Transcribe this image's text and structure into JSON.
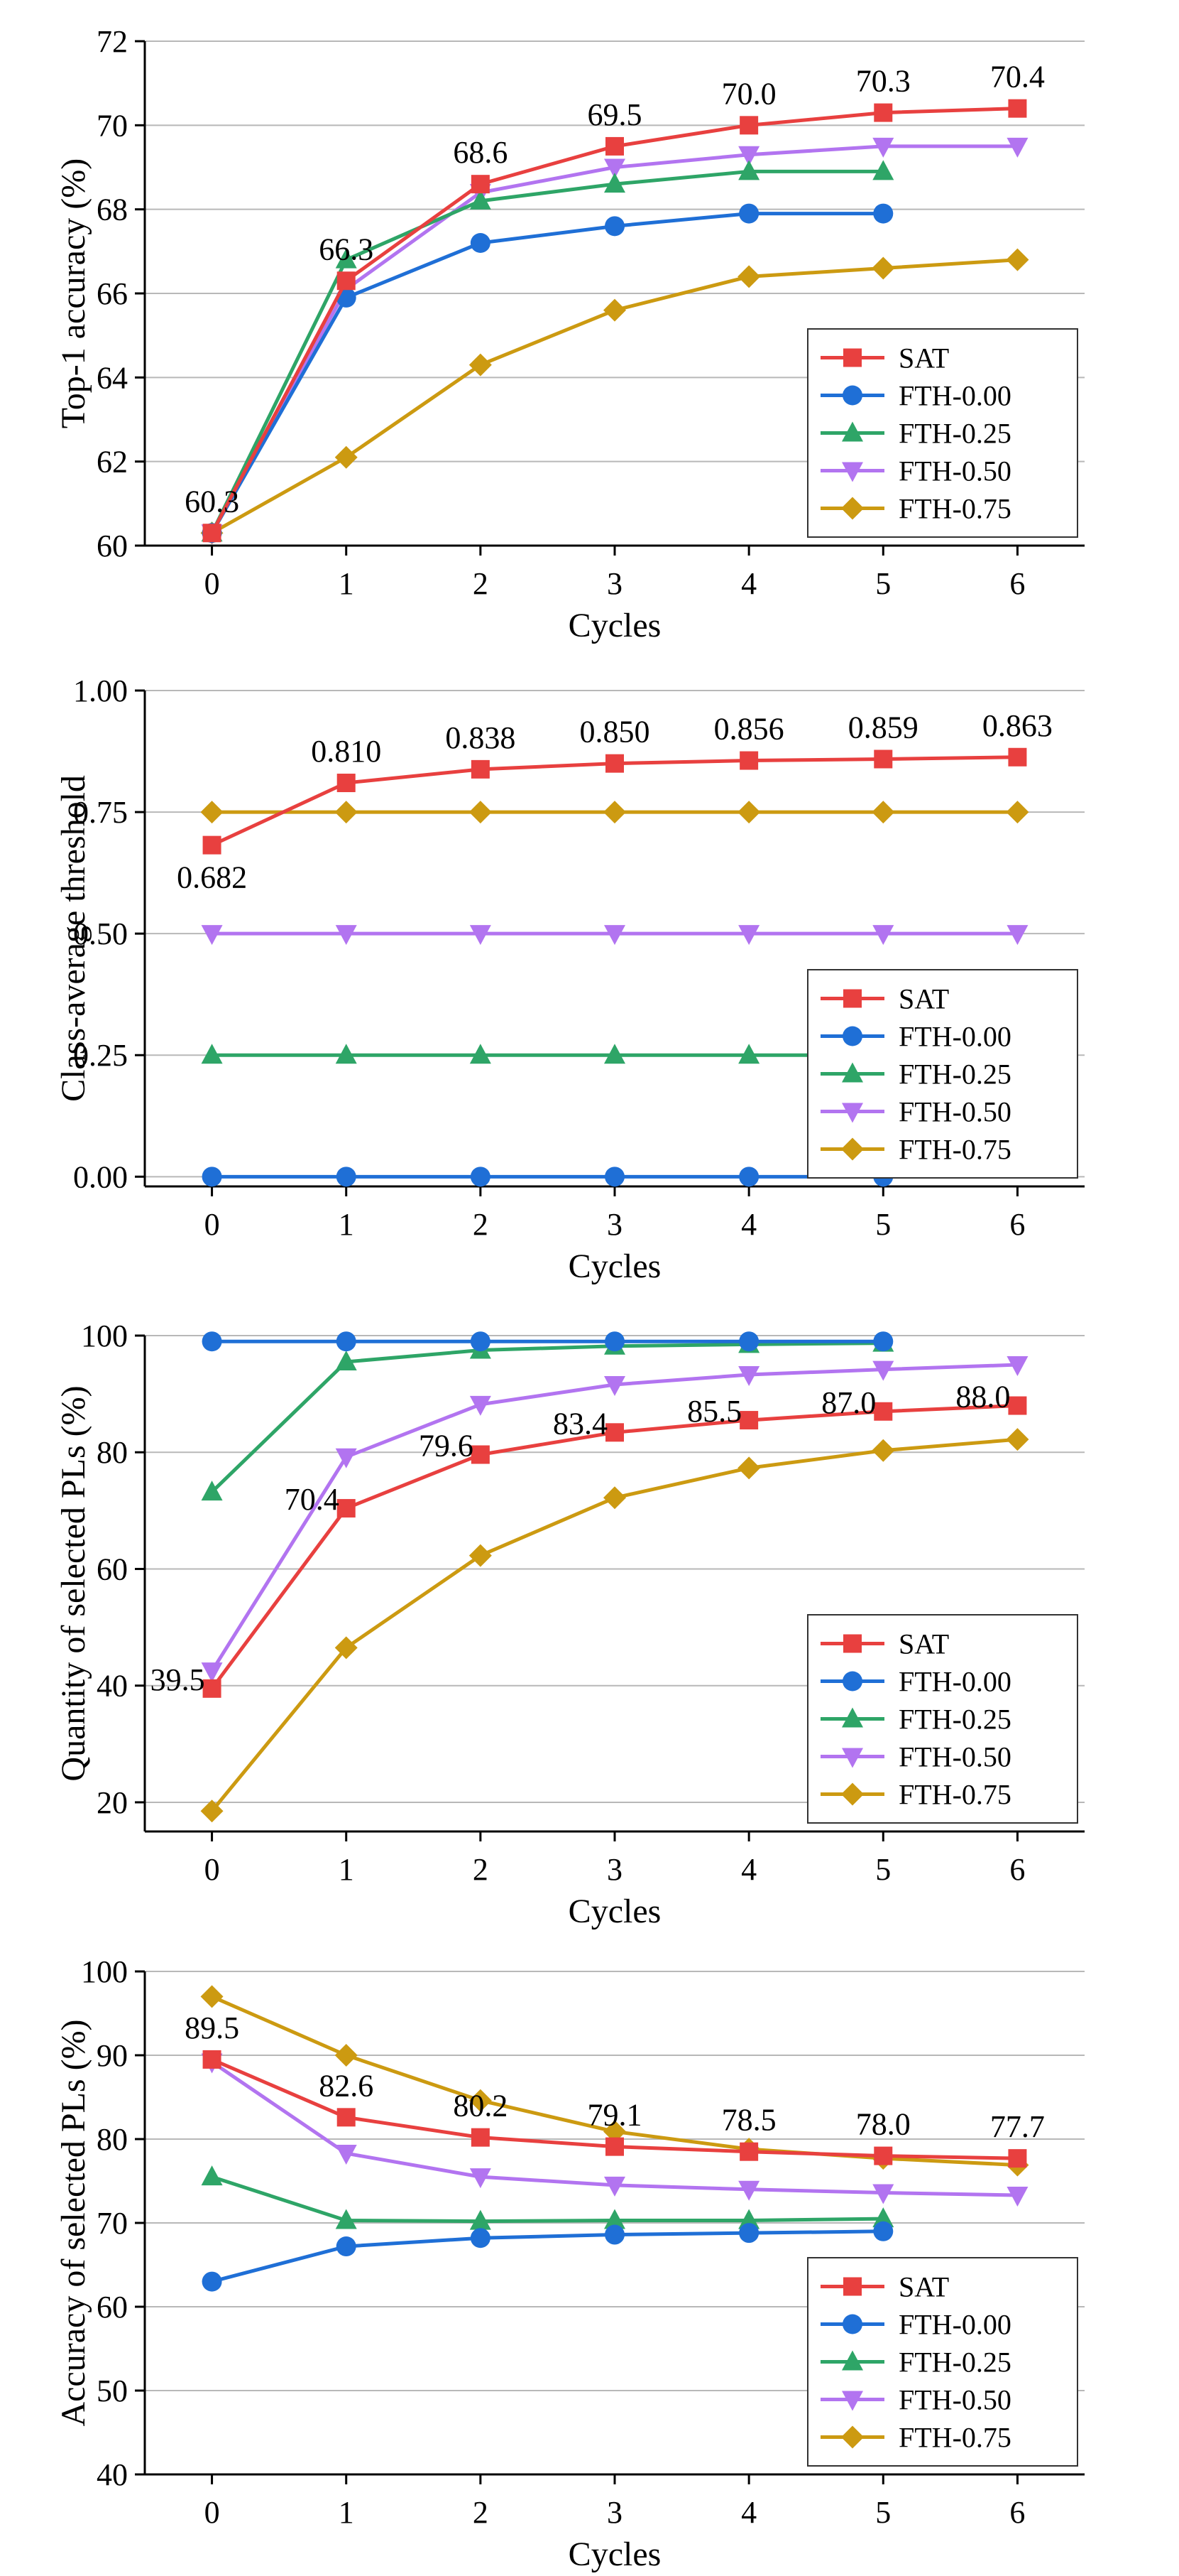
{
  "figure": {
    "colors": {
      "SAT": "#e8403f",
      "FTH-0.00": "#1f6fd6",
      "FTH-0.25": "#2ea567",
      "FTH-0.50": "#b274f0",
      "FTH-0.75": "#cc9a11",
      "grid": "#b8b8b8",
      "axis": "#000000"
    },
    "markers": {
      "SAT": "square",
      "FTH-0.00": "circle",
      "FTH-0.25": "triangle-up",
      "FTH-0.50": "triangle-down",
      "FTH-0.75": "diamond"
    }
  },
  "chart_data": [
    {
      "type": "line",
      "xlabel": "Cycles",
      "ylabel": "Top-1 accuracy (%)",
      "xlim": [
        -0.5,
        6.5
      ],
      "ylim": [
        60,
        72
      ],
      "xticks": [
        0,
        1,
        2,
        3,
        4,
        5,
        6
      ],
      "yticks": [
        60,
        62,
        64,
        66,
        68,
        70,
        72
      ],
      "ytick_labels": [
        "60",
        "62",
        "64",
        "66",
        "68",
        "70",
        "72"
      ],
      "grid": true,
      "legend_position": "lower-right",
      "series": [
        {
          "name": "SAT",
          "x": [
            0,
            1,
            2,
            3,
            4,
            5,
            6
          ],
          "values": [
            60.3,
            66.3,
            68.6,
            69.5,
            70.0,
            70.3,
            70.4
          ]
        },
        {
          "name": "FTH-0.00",
          "x": [
            0,
            1,
            2,
            3,
            4,
            5
          ],
          "values": [
            60.3,
            65.9,
            67.2,
            67.6,
            67.9,
            67.9
          ]
        },
        {
          "name": "FTH-0.25",
          "x": [
            0,
            1,
            2,
            3,
            4,
            5
          ],
          "values": [
            60.3,
            66.8,
            68.2,
            68.6,
            68.9,
            68.9
          ]
        },
        {
          "name": "FTH-0.50",
          "x": [
            0,
            1,
            2,
            3,
            4,
            5,
            6
          ],
          "values": [
            60.3,
            66.1,
            68.4,
            69.0,
            69.3,
            69.5,
            69.5
          ]
        },
        {
          "name": "FTH-0.75",
          "x": [
            0,
            1,
            2,
            3,
            4,
            5,
            6
          ],
          "values": [
            60.3,
            62.1,
            64.3,
            65.6,
            66.4,
            66.6,
            66.8
          ]
        }
      ],
      "annotations": [
        {
          "x": 0,
          "y": 60.3,
          "text": "60.3",
          "placement": "above"
        },
        {
          "x": 1,
          "y": 66.3,
          "text": "66.3",
          "placement": "above"
        },
        {
          "x": 2,
          "y": 68.6,
          "text": "68.6",
          "placement": "above"
        },
        {
          "x": 3,
          "y": 69.5,
          "text": "69.5",
          "placement": "above"
        },
        {
          "x": 4,
          "y": 70.0,
          "text": "70.0",
          "placement": "above"
        },
        {
          "x": 5,
          "y": 70.3,
          "text": "70.3",
          "placement": "above"
        },
        {
          "x": 6,
          "y": 70.4,
          "text": "70.4",
          "placement": "above"
        }
      ]
    },
    {
      "type": "line",
      "xlabel": "Cycles",
      "ylabel": "Class-average threshold",
      "xlim": [
        -0.5,
        6.5
      ],
      "ylim": [
        -0.02,
        1.0
      ],
      "xticks": [
        0,
        1,
        2,
        3,
        4,
        5,
        6
      ],
      "yticks": [
        0.0,
        0.25,
        0.5,
        0.75,
        1.0
      ],
      "ytick_labels": [
        "0.00",
        "0.25",
        "0.50",
        "0.75",
        "1.00"
      ],
      "grid": true,
      "legend_position": "lower-right",
      "series": [
        {
          "name": "SAT",
          "x": [
            0,
            1,
            2,
            3,
            4,
            5,
            6
          ],
          "values": [
            0.682,
            0.81,
            0.838,
            0.85,
            0.856,
            0.859,
            0.863
          ]
        },
        {
          "name": "FTH-0.00",
          "x": [
            0,
            1,
            2,
            3,
            4,
            5
          ],
          "values": [
            0.0,
            0.0,
            0.0,
            0.0,
            0.0,
            0.0
          ]
        },
        {
          "name": "FTH-0.25",
          "x": [
            0,
            1,
            2,
            3,
            4,
            5
          ],
          "values": [
            0.25,
            0.25,
            0.25,
            0.25,
            0.25,
            0.25
          ]
        },
        {
          "name": "FTH-0.50",
          "x": [
            0,
            1,
            2,
            3,
            4,
            5,
            6
          ],
          "values": [
            0.5,
            0.5,
            0.5,
            0.5,
            0.5,
            0.5,
            0.5
          ]
        },
        {
          "name": "FTH-0.75",
          "x": [
            0,
            1,
            2,
            3,
            4,
            5,
            6
          ],
          "values": [
            0.75,
            0.75,
            0.75,
            0.75,
            0.75,
            0.75,
            0.75
          ]
        }
      ],
      "annotations": [
        {
          "x": 0,
          "y": 0.682,
          "text": "0.682",
          "placement": "below"
        },
        {
          "x": 1,
          "y": 0.81,
          "text": "0.810",
          "placement": "above"
        },
        {
          "x": 2,
          "y": 0.838,
          "text": "0.838",
          "placement": "above"
        },
        {
          "x": 3,
          "y": 0.85,
          "text": "0.850",
          "placement": "above"
        },
        {
          "x": 4,
          "y": 0.856,
          "text": "0.856",
          "placement": "above"
        },
        {
          "x": 5,
          "y": 0.859,
          "text": "0.859",
          "placement": "above"
        },
        {
          "x": 6,
          "y": 0.863,
          "text": "0.863",
          "placement": "above"
        }
      ]
    },
    {
      "type": "line",
      "xlabel": "Cycles",
      "ylabel": "Quantity of selected PLs (%)",
      "xlim": [
        -0.5,
        6.5
      ],
      "ylim": [
        15,
        100
      ],
      "xticks": [
        0,
        1,
        2,
        3,
        4,
        5,
        6
      ],
      "yticks": [
        20,
        40,
        60,
        80,
        100
      ],
      "ytick_labels": [
        "20",
        "40",
        "60",
        "80",
        "100"
      ],
      "grid": true,
      "legend_position": "lower-right",
      "series": [
        {
          "name": "SAT",
          "x": [
            0,
            1,
            2,
            3,
            4,
            5,
            6
          ],
          "values": [
            39.5,
            70.4,
            79.6,
            83.4,
            85.5,
            87.0,
            88.0
          ]
        },
        {
          "name": "FTH-0.00",
          "x": [
            0,
            1,
            2,
            3,
            4,
            5
          ],
          "values": [
            99.0,
            99.0,
            99.0,
            99.0,
            99.0,
            99.0
          ]
        },
        {
          "name": "FTH-0.25",
          "x": [
            0,
            1,
            2,
            3,
            4,
            5
          ],
          "values": [
            73.2,
            95.5,
            97.5,
            98.2,
            98.5,
            98.7
          ]
        },
        {
          "name": "FTH-0.50",
          "x": [
            0,
            1,
            2,
            3,
            4,
            5,
            6
          ],
          "values": [
            42.5,
            79.2,
            88.2,
            91.6,
            93.3,
            94.2,
            95.0
          ]
        },
        {
          "name": "FTH-0.75",
          "x": [
            0,
            1,
            2,
            3,
            4,
            5,
            6
          ],
          "values": [
            18.5,
            46.5,
            62.3,
            72.2,
            77.3,
            80.3,
            82.2
          ]
        }
      ],
      "annotations": [
        {
          "x": 0,
          "y": 39.5,
          "text": "39.5",
          "placement": "left"
        },
        {
          "x": 1,
          "y": 70.4,
          "text": "70.4",
          "placement": "left"
        },
        {
          "x": 2,
          "y": 79.6,
          "text": "79.6",
          "placement": "left"
        },
        {
          "x": 3,
          "y": 83.4,
          "text": "83.4",
          "placement": "left"
        },
        {
          "x": 4,
          "y": 85.5,
          "text": "85.5",
          "placement": "left"
        },
        {
          "x": 5,
          "y": 87.0,
          "text": "87.0",
          "placement": "left"
        },
        {
          "x": 6,
          "y": 88.0,
          "text": "88.0",
          "placement": "left"
        }
      ]
    },
    {
      "type": "line",
      "xlabel": "Cycles",
      "ylabel": "Accuracy of selected PLs (%)",
      "xlim": [
        -0.5,
        6.5
      ],
      "ylim": [
        40,
        100
      ],
      "xticks": [
        0,
        1,
        2,
        3,
        4,
        5,
        6
      ],
      "yticks": [
        40,
        50,
        60,
        70,
        80,
        90,
        100
      ],
      "ytick_labels": [
        "40",
        "50",
        "60",
        "70",
        "80",
        "90",
        "100"
      ],
      "grid": true,
      "legend_position": "lower-right",
      "series": [
        {
          "name": "SAT",
          "x": [
            0,
            1,
            2,
            3,
            4,
            5,
            6
          ],
          "values": [
            89.5,
            82.6,
            80.2,
            79.1,
            78.5,
            78.0,
            77.7
          ]
        },
        {
          "name": "FTH-0.00",
          "x": [
            0,
            1,
            2,
            3,
            4,
            5
          ],
          "values": [
            63.0,
            67.2,
            68.2,
            68.6,
            68.8,
            69.0
          ]
        },
        {
          "name": "FTH-0.25",
          "x": [
            0,
            1,
            2,
            3,
            4,
            5
          ],
          "values": [
            75.5,
            70.3,
            70.2,
            70.3,
            70.3,
            70.5
          ]
        },
        {
          "name": "FTH-0.50",
          "x": [
            0,
            1,
            2,
            3,
            4,
            5,
            6
          ],
          "values": [
            89.2,
            78.3,
            75.5,
            74.5,
            74.0,
            73.6,
            73.3
          ]
        },
        {
          "name": "FTH-0.75",
          "x": [
            0,
            1,
            2,
            3,
            4,
            5,
            6
          ],
          "values": [
            97.0,
            90.0,
            84.6,
            80.9,
            78.8,
            77.7,
            76.9
          ]
        }
      ],
      "annotations": [
        {
          "x": 0,
          "y": 89.5,
          "text": "89.5",
          "placement": "above"
        },
        {
          "x": 1,
          "y": 82.6,
          "text": "82.6",
          "placement": "above"
        },
        {
          "x": 2,
          "y": 80.2,
          "text": "80.2",
          "placement": "above"
        },
        {
          "x": 3,
          "y": 79.1,
          "text": "79.1",
          "placement": "above"
        },
        {
          "x": 4,
          "y": 78.5,
          "text": "78.5",
          "placement": "above"
        },
        {
          "x": 5,
          "y": 78.0,
          "text": "78.0",
          "placement": "above"
        },
        {
          "x": 6,
          "y": 77.7,
          "text": "77.7",
          "placement": "above"
        }
      ]
    }
  ]
}
